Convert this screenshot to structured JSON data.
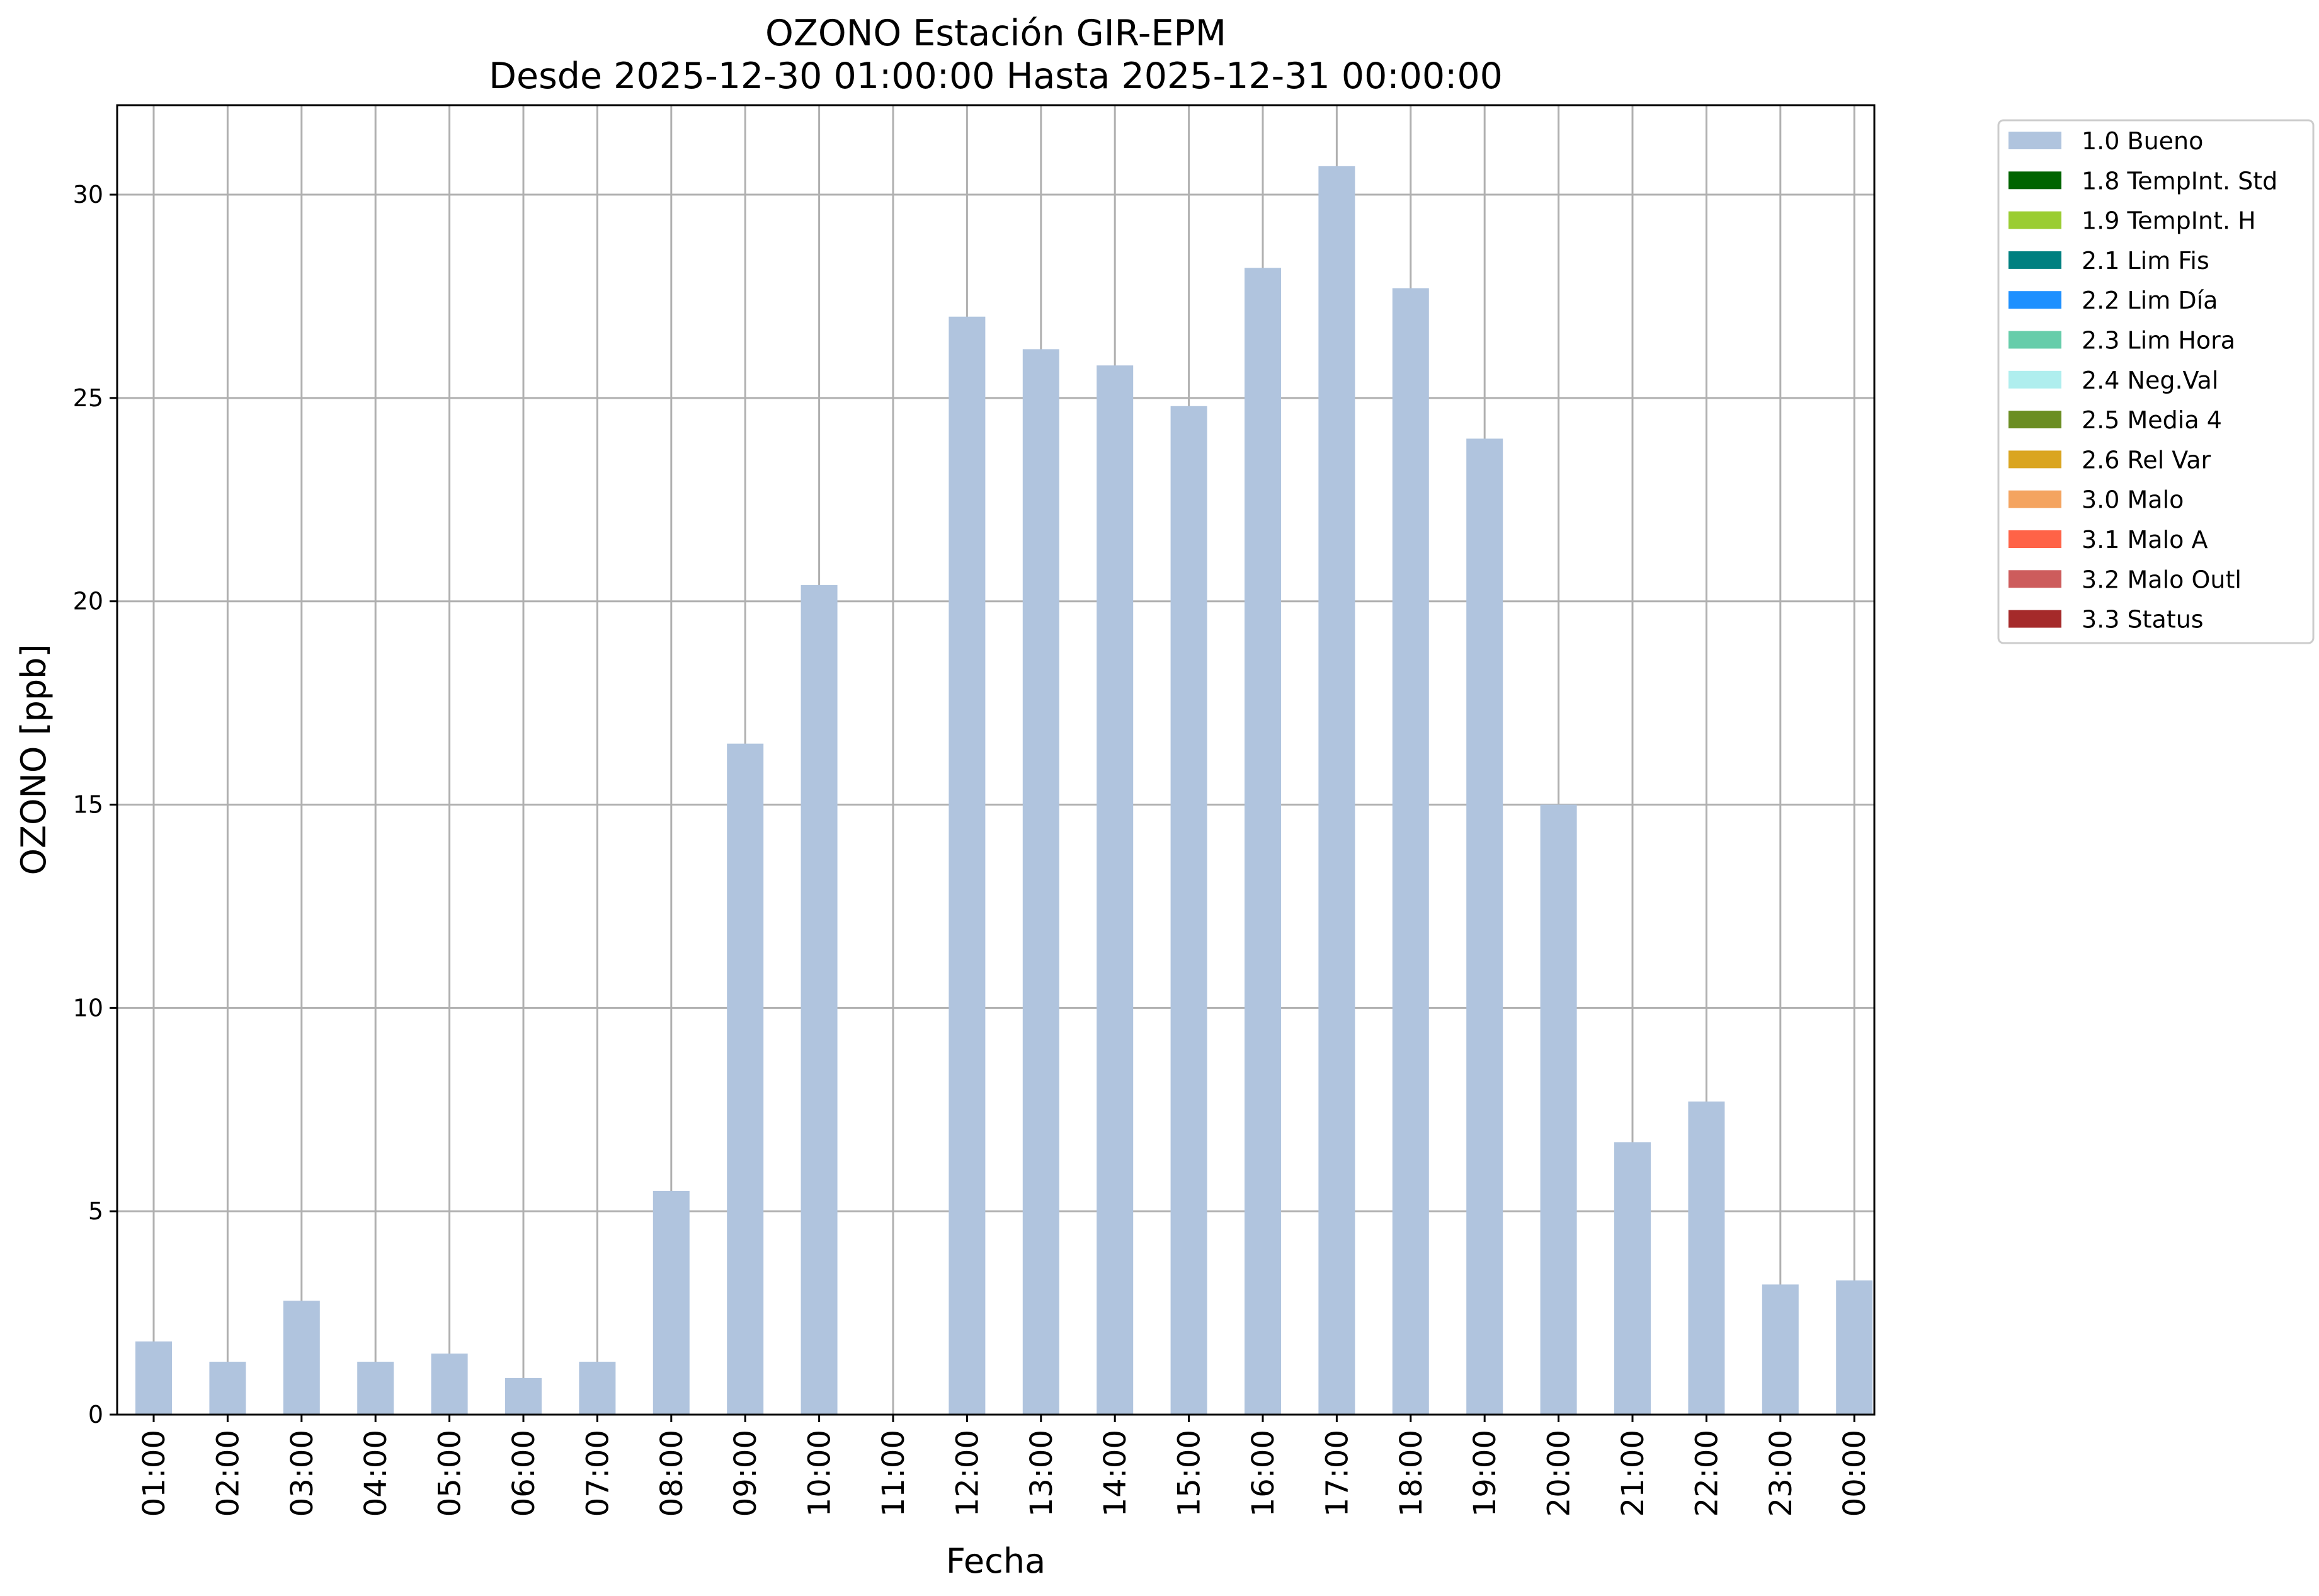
{
  "chart_data": {
    "type": "bar",
    "title": "OZONO Estación GIR-EPM",
    "subtitle": "Desde 2025-12-30 01:00:00 Hasta 2025-12-31 00:00:00",
    "xlabel": "Fecha",
    "ylabel": "OZONO [ppb]",
    "ylim": [
      0,
      32.2
    ],
    "yticks": [
      "0",
      "5",
      "10",
      "15",
      "20",
      "25",
      "30"
    ],
    "grid": true,
    "legend_position": "outside right, top",
    "categories": [
      "01:00",
      "02:00",
      "03:00",
      "04:00",
      "05:00",
      "06:00",
      "07:00",
      "08:00",
      "09:00",
      "10:00",
      "11:00",
      "12:00",
      "13:00",
      "14:00",
      "15:00",
      "16:00",
      "17:00",
      "18:00",
      "19:00",
      "20:00",
      "21:00",
      "22:00",
      "23:00",
      "00:00"
    ],
    "series": [
      {
        "name": "1.0 Bueno",
        "color": "#b0c4de",
        "values": [
          1.8,
          1.3,
          2.8,
          1.3,
          1.5,
          0.9,
          1.3,
          5.5,
          16.5,
          20.4,
          null,
          27.0,
          26.2,
          25.8,
          24.8,
          28.2,
          30.7,
          27.7,
          24.0,
          15.0,
          6.7,
          7.7,
          3.2,
          3.3
        ]
      }
    ],
    "legend": [
      {
        "label": "1.0 Bueno",
        "color": "#b0c4de"
      },
      {
        "label": "1.8 TempInt. Std",
        "color": "#006400"
      },
      {
        "label": "1.9 TempInt. H",
        "color": "#9acd32"
      },
      {
        "label": "2.1 Lim Fis",
        "color": "#008080"
      },
      {
        "label": "2.2 Lim Día",
        "color": "#1e90ff"
      },
      {
        "label": "2.3 Lim Hora",
        "color": "#66cdaa"
      },
      {
        "label": "2.4 Neg.Val",
        "color": "#afeeee"
      },
      {
        "label": "2.5 Media 4",
        "color": "#6b8e23"
      },
      {
        "label": "2.6 Rel Var",
        "color": "#daa520"
      },
      {
        "label": "3.0 Malo",
        "color": "#f4a460"
      },
      {
        "label": "3.1 Malo A",
        "color": "#ff6347"
      },
      {
        "label": "3.2 Malo Outl",
        "color": "#cd5c5c"
      },
      {
        "label": "3.3 Status",
        "color": "#a52a2a"
      }
    ]
  }
}
